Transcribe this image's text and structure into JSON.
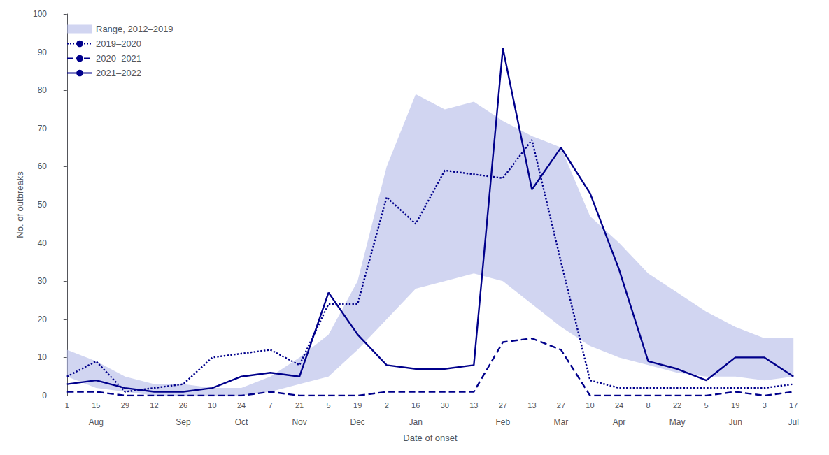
{
  "chart_data": {
    "type": "line",
    "xlabel": "Date of onset",
    "ylabel": "No. of outbreaks",
    "categories": [
      "1",
      "15",
      "29",
      "12",
      "26",
      "10",
      "24",
      "7",
      "21",
      "5",
      "19",
      "2",
      "16",
      "30",
      "13",
      "27",
      "13",
      "27",
      "10",
      "24",
      "8",
      "22",
      "5",
      "19",
      "3",
      "17"
    ],
    "annotations": [
      {
        "text": "Aug",
        "x": 1.0
      },
      {
        "text": "Sep",
        "x": 4.0
      },
      {
        "text": "Oct",
        "x": 6.0
      },
      {
        "text": "Nov",
        "x": 8.0
      },
      {
        "text": "Dec",
        "x": 10.0
      },
      {
        "text": "Jan",
        "x": 12.0
      },
      {
        "text": "Feb",
        "x": 15.0
      },
      {
        "text": "Mar",
        "x": 17.0
      },
      {
        "text": "Apr",
        "x": 19.0
      },
      {
        "text": "May",
        "x": 21.0
      },
      {
        "text": "Jun",
        "x": 23.0
      },
      {
        "text": "Jul",
        "x": 25.0
      }
    ],
    "series": [
      {
        "name": "Range, 2012–2019",
        "type": "band",
        "color": "#b3b9e8",
        "lower": [
          5,
          2,
          1,
          0,
          0,
          0,
          0,
          1,
          3,
          5,
          12,
          20,
          28,
          30,
          32,
          30,
          24,
          18,
          13,
          10,
          8,
          6,
          5,
          5,
          4,
          5
        ],
        "upper": [
          12,
          9,
          5,
          3,
          3,
          2,
          2,
          5,
          10,
          16,
          30,
          60,
          79,
          75,
          77,
          72,
          68,
          65,
          47,
          40,
          32,
          27,
          22,
          18,
          15,
          15
        ]
      },
      {
        "name": "2019–2020",
        "type": "line",
        "color": "#00008B",
        "line_style": "dotted",
        "values": [
          5,
          9,
          1,
          2,
          3,
          10,
          11,
          12,
          8,
          24,
          24,
          52,
          45,
          59,
          58,
          57,
          67,
          35,
          4,
          2,
          2,
          2,
          2,
          2,
          2,
          3
        ]
      },
      {
        "name": "2020–2021",
        "type": "line",
        "color": "#00008B",
        "line_style": "dashed",
        "values": [
          1,
          1,
          0,
          0,
          0,
          0,
          0,
          1,
          0,
          0,
          0,
          1,
          1,
          1,
          1,
          14,
          15,
          12,
          0,
          0,
          0,
          0,
          0,
          1,
          0,
          1
        ]
      },
      {
        "name": "2021–2022",
        "type": "line",
        "color": "#00008B",
        "line_style": "solid",
        "values": [
          3,
          4,
          2,
          1,
          1,
          2,
          5,
          6,
          5,
          27,
          16,
          8,
          7,
          7,
          8,
          91,
          54,
          65,
          53,
          33,
          9,
          7,
          4,
          10,
          10,
          5
        ]
      }
    ],
    "ylim": [
      0,
      100
    ],
    "yticks": [
      0,
      10,
      20,
      30,
      40,
      50,
      60,
      70,
      80,
      90,
      100
    ],
    "grid": false,
    "legend": "upper left"
  }
}
